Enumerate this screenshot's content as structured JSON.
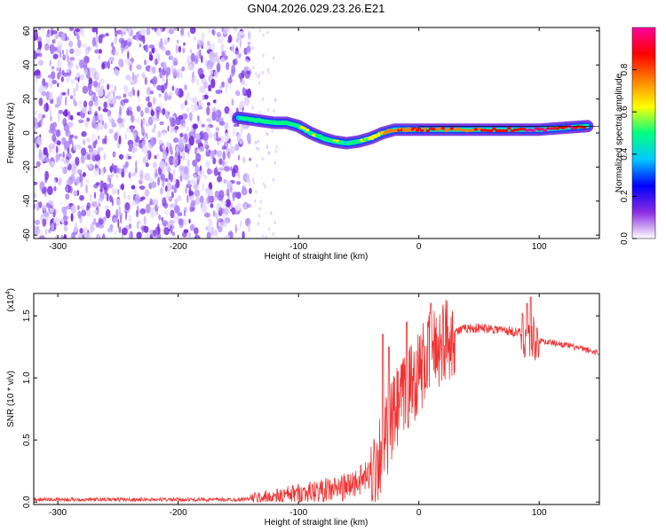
{
  "title": "GN04.2026.029.23.26.E21",
  "chart_data": [
    {
      "type": "heatmap",
      "xlabel": "Height of straight line (km)",
      "ylabel": "Frequency (Hz)",
      "xlim": [
        -320,
        150
      ],
      "ylim": [
        -62,
        62
      ],
      "xticks": [
        -300,
        -200,
        -100,
        0,
        100
      ],
      "xtick_labels": [
        "-300",
        "-200",
        "-100",
        "0",
        "100"
      ],
      "yticks": [
        60,
        40,
        20,
        0,
        -20,
        -40,
        -60
      ],
      "ytick_labels": [
        "60",
        "40",
        "20",
        "0",
        "-20",
        "-40",
        "-60"
      ],
      "noise_region_x": [
        -320,
        -140
      ],
      "ridge": [
        {
          "x": -150,
          "y": 9,
          "a": 0.45
        },
        {
          "x": -140,
          "y": 8,
          "a": 0.5
        },
        {
          "x": -130,
          "y": 7,
          "a": 0.5
        },
        {
          "x": -120,
          "y": 6,
          "a": 0.5
        },
        {
          "x": -110,
          "y": 6,
          "a": 0.5
        },
        {
          "x": -100,
          "y": 4,
          "a": 0.55
        },
        {
          "x": -90,
          "y": 0,
          "a": 0.55
        },
        {
          "x": -80,
          "y": -3,
          "a": 0.5
        },
        {
          "x": -70,
          "y": -5,
          "a": 0.55
        },
        {
          "x": -60,
          "y": -6,
          "a": 0.45
        },
        {
          "x": -50,
          "y": -5,
          "a": 0.5
        },
        {
          "x": -40,
          "y": -3,
          "a": 0.6
        },
        {
          "x": -30,
          "y": 0,
          "a": 0.7
        },
        {
          "x": -20,
          "y": 2,
          "a": 0.8
        },
        {
          "x": -10,
          "y": 2,
          "a": 0.75
        },
        {
          "x": 0,
          "y": 2,
          "a": 0.85
        },
        {
          "x": 20,
          "y": 2,
          "a": 0.8
        },
        {
          "x": 40,
          "y": 2,
          "a": 0.8
        },
        {
          "x": 60,
          "y": 2,
          "a": 0.85
        },
        {
          "x": 80,
          "y": 2,
          "a": 0.9
        },
        {
          "x": 100,
          "y": 2,
          "a": 0.95
        },
        {
          "x": 120,
          "y": 3,
          "a": 0.9
        },
        {
          "x": 140,
          "y": 4,
          "a": 0.9
        }
      ],
      "colorbar": {
        "label": "Normalized spectral amplitude",
        "ticks": [
          0.0,
          0.2,
          0.4,
          0.6,
          0.8
        ],
        "tick_labels": [
          "0.0",
          "0.2",
          "0.4",
          "0.6",
          "0.8"
        ],
        "range": [
          0.0,
          1.0
        ],
        "colors": [
          "#ffffff",
          "#8a2be2",
          "#0000ff",
          "#00c8ff",
          "#00ff80",
          "#ffff00",
          "#ff8000",
          "#ff0000",
          "#ff00a0"
        ]
      }
    },
    {
      "type": "line",
      "xlabel": "Height of straight line (km)",
      "ylabel": "SNR (10 * v/v)",
      "exponent_label": "(x10",
      "exponent_power": "4",
      "exponent_close": ")",
      "color": "#ee3333",
      "xlim": [
        -320,
        150
      ],
      "ylim": [
        -0.02,
        1.68
      ],
      "xticks": [
        -300,
        -200,
        -100,
        0,
        100
      ],
      "xtick_labels": [
        "-300",
        "-200",
        "-100",
        "0",
        "100"
      ],
      "yticks": [
        0.0,
        0.5,
        1.0,
        1.5
      ],
      "ytick_labels": [
        "0.0",
        "0.5",
        "1.0",
        "1.5"
      ],
      "trend": {
        "x": [
          -320,
          -150,
          -120,
          -100,
          -80,
          -60,
          -40,
          -30,
          -20,
          -10,
          0,
          10,
          20,
          30,
          40,
          60,
          80,
          90,
          95,
          100,
          120,
          150
        ],
        "y": [
          0.02,
          0.02,
          0.04,
          0.07,
          0.09,
          0.12,
          0.22,
          0.45,
          0.7,
          0.9,
          1.05,
          1.2,
          1.3,
          1.37,
          1.4,
          1.4,
          1.37,
          1.35,
          1.32,
          1.3,
          1.27,
          1.2
        ]
      },
      "spikes": [
        {
          "x": -30,
          "y": 1.35
        },
        {
          "x": -25,
          "y": 1.25
        },
        {
          "x": -10,
          "y": 1.45
        },
        {
          "x": 10,
          "y": 1.6
        },
        {
          "x": 90,
          "y": 1.6
        },
        {
          "x": 93,
          "y": 1.65
        }
      ]
    }
  ]
}
